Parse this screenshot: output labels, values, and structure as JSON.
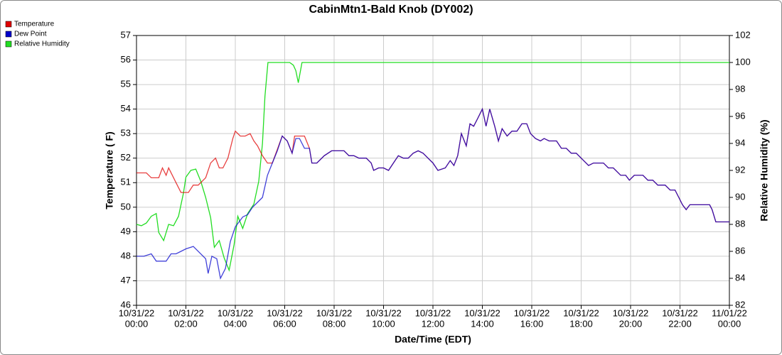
{
  "chart_data": {
    "type": "line",
    "title": "CabinMtn1-Bald Knob (DY002)",
    "xlabel": "Date/Time (EDT)",
    "ylabel": "Temperature ( F)",
    "y2label": "Relative Humidity (%)",
    "xlim": [
      0,
      24
    ],
    "xticks": [
      {
        "value": 0,
        "label": [
          "10/31/22",
          "00:00"
        ]
      },
      {
        "value": 2,
        "label": [
          "10/31/22",
          "02:00"
        ]
      },
      {
        "value": 4,
        "label": [
          "10/31/22",
          "04:00"
        ]
      },
      {
        "value": 6,
        "label": [
          "10/31/22",
          "06:00"
        ]
      },
      {
        "value": 8,
        "label": [
          "10/31/22",
          "08:00"
        ]
      },
      {
        "value": 10,
        "label": [
          "10/31/22",
          "10:00"
        ]
      },
      {
        "value": 12,
        "label": [
          "10/31/22",
          "12:00"
        ]
      },
      {
        "value": 14,
        "label": [
          "10/31/22",
          "14:00"
        ]
      },
      {
        "value": 16,
        "label": [
          "10/31/22",
          "16:00"
        ]
      },
      {
        "value": 18,
        "label": [
          "10/31/22",
          "18:00"
        ]
      },
      {
        "value": 20,
        "label": [
          "10/31/22",
          "20:00"
        ]
      },
      {
        "value": 22,
        "label": [
          "10/31/22",
          "22:00"
        ]
      },
      {
        "value": 24,
        "label": [
          "11/01/22",
          "00:00"
        ]
      }
    ],
    "ylim": [
      46,
      57
    ],
    "yticks": [
      46,
      47,
      48,
      49,
      50,
      51,
      52,
      53,
      54,
      55,
      56,
      57
    ],
    "y2lim": [
      82,
      102
    ],
    "y2ticks": [
      82,
      84,
      86,
      88,
      90,
      92,
      94,
      96,
      98,
      100,
      102
    ],
    "grid": true,
    "legend": "top-left",
    "series": [
      {
        "name": "Temperature",
        "color": "#e00000",
        "x": [
          0,
          0.4,
          0.6,
          0.9,
          1.05,
          1.2,
          1.3,
          1.6,
          1.8,
          2.1,
          2.3,
          2.5,
          2.8,
          3.0,
          3.2,
          3.35,
          3.5,
          3.7,
          3.9,
          4.0,
          4.2,
          4.4,
          4.6,
          4.75,
          4.9,
          5.1,
          5.3,
          5.5,
          5.9,
          6.1,
          6.3,
          6.4,
          6.8,
          7.0,
          7.1,
          7.3,
          7.6,
          7.9,
          8.4,
          8.6,
          8.8,
          9.0,
          9.3,
          9.5,
          9.6,
          9.8,
          10.0,
          10.2,
          10.4,
          10.6,
          10.8,
          11.0,
          11.2,
          11.4,
          11.6,
          11.8,
          12.0,
          12.2,
          12.5,
          12.7,
          12.85,
          13.0,
          13.15,
          13.35,
          13.5,
          13.65,
          13.8,
          14.0,
          14.15,
          14.3,
          14.5,
          14.65,
          14.8,
          15.0,
          15.2,
          15.4,
          15.6,
          15.8,
          15.95,
          16.15,
          16.35,
          16.5,
          16.7,
          17.0,
          17.2,
          17.4,
          17.6,
          17.8,
          18.1,
          18.3,
          18.5,
          18.9,
          19.1,
          19.3,
          19.6,
          19.8,
          19.95,
          20.15,
          20.5,
          20.7,
          20.9,
          21.1,
          21.4,
          21.6,
          21.8,
          21.95,
          22.1,
          22.25,
          22.4,
          23.2,
          23.3,
          23.45,
          24.0
        ],
        "values": [
          51.4,
          51.4,
          51.2,
          51.2,
          51.6,
          51.3,
          51.6,
          51.0,
          50.6,
          50.6,
          50.9,
          50.9,
          51.2,
          51.8,
          52.0,
          51.6,
          51.6,
          52.0,
          52.8,
          53.1,
          52.9,
          52.9,
          53.0,
          52.7,
          52.5,
          52.1,
          51.8,
          51.8,
          52.9,
          52.7,
          52.2,
          52.9,
          52.9,
          52.4,
          51.8,
          51.8,
          52.1,
          52.3,
          52.3,
          52.1,
          52.1,
          52.0,
          52.0,
          51.8,
          51.5,
          51.6,
          51.6,
          51.5,
          51.8,
          52.1,
          52.0,
          52.0,
          52.2,
          52.3,
          52.2,
          52.0,
          51.8,
          51.5,
          51.6,
          51.9,
          51.7,
          52.1,
          53.0,
          52.5,
          53.4,
          53.3,
          53.6,
          54.0,
          53.3,
          54.0,
          53.3,
          52.7,
          53.2,
          52.9,
          53.1,
          53.1,
          53.4,
          53.4,
          53.0,
          52.8,
          52.7,
          52.8,
          52.7,
          52.7,
          52.4,
          52.4,
          52.2,
          52.2,
          51.9,
          51.7,
          51.8,
          51.8,
          51.6,
          51.6,
          51.3,
          51.3,
          51.1,
          51.3,
          51.3,
          51.1,
          51.1,
          50.9,
          50.9,
          50.7,
          50.7,
          50.4,
          50.1,
          49.9,
          50.1,
          50.1,
          49.9,
          49.4,
          49.4
        ]
      },
      {
        "name": "Dew Point",
        "color": "#0000cc",
        "x": [
          0,
          0.3,
          0.6,
          0.8,
          1.2,
          1.4,
          1.6,
          1.8,
          2.0,
          2.3,
          2.8,
          2.9,
          3.05,
          3.25,
          3.4,
          3.6,
          3.8,
          4.0,
          4.3,
          4.5,
          4.7,
          4.9,
          5.1,
          5.3,
          5.5,
          5.7,
          5.9,
          6.1,
          6.3,
          6.45,
          6.6,
          6.8,
          7.0,
          7.1,
          7.3,
          7.6,
          7.9,
          8.4,
          8.6,
          8.8,
          9.0,
          9.3,
          9.5,
          9.6,
          9.8,
          10.0,
          10.2,
          10.4,
          10.6,
          10.8,
          11.0,
          11.2,
          11.4,
          11.6,
          11.8,
          12.0,
          12.2,
          12.5,
          12.7,
          12.85,
          13.0,
          13.15,
          13.35,
          13.5,
          13.65,
          13.8,
          14.0,
          14.15,
          14.3,
          14.5,
          14.65,
          14.8,
          15.0,
          15.2,
          15.4,
          15.6,
          15.8,
          15.95,
          16.15,
          16.35,
          16.5,
          16.7,
          17.0,
          17.2,
          17.4,
          17.6,
          17.8,
          18.1,
          18.3,
          18.5,
          18.9,
          19.1,
          19.3,
          19.6,
          19.8,
          19.95,
          20.15,
          20.5,
          20.7,
          20.9,
          21.1,
          21.4,
          21.6,
          21.8,
          21.95,
          22.1,
          22.25,
          22.4,
          23.2,
          23.3,
          23.45,
          24.0
        ],
        "values": [
          48.0,
          48.0,
          48.1,
          47.8,
          47.8,
          48.1,
          48.1,
          48.2,
          48.3,
          48.4,
          47.9,
          47.3,
          48.0,
          47.9,
          47.1,
          47.5,
          48.6,
          49.2,
          49.6,
          49.7,
          50.0,
          50.2,
          50.4,
          51.3,
          51.8,
          52.3,
          52.9,
          52.7,
          52.2,
          52.8,
          52.8,
          52.4,
          52.4,
          51.8,
          51.8,
          52.1,
          52.3,
          52.3,
          52.1,
          52.1,
          52.0,
          52.0,
          51.8,
          51.5,
          51.6,
          51.6,
          51.5,
          51.8,
          52.1,
          52.0,
          52.0,
          52.2,
          52.3,
          52.2,
          52.0,
          51.8,
          51.5,
          51.6,
          51.9,
          51.7,
          52.1,
          53.0,
          52.5,
          53.4,
          53.3,
          53.6,
          54.0,
          53.3,
          54.0,
          53.3,
          52.7,
          53.2,
          52.9,
          53.1,
          53.1,
          53.4,
          53.4,
          53.0,
          52.8,
          52.7,
          52.8,
          52.7,
          52.7,
          52.4,
          52.4,
          52.2,
          52.2,
          51.9,
          51.7,
          51.8,
          51.8,
          51.6,
          51.6,
          51.3,
          51.3,
          51.1,
          51.3,
          51.3,
          51.1,
          51.1,
          50.9,
          50.9,
          50.7,
          50.7,
          50.4,
          50.1,
          49.9,
          50.1,
          50.1,
          49.9,
          49.4,
          49.4
        ]
      },
      {
        "name": "Relative Humidity",
        "color": "#22dd22",
        "axis": "y2",
        "x": [
          0,
          0.2,
          0.4,
          0.6,
          0.8,
          0.9,
          1.1,
          1.3,
          1.5,
          1.7,
          1.9,
          2.0,
          2.2,
          2.4,
          2.6,
          2.8,
          3.0,
          3.15,
          3.35,
          3.55,
          3.75,
          3.95,
          4.1,
          4.3,
          4.5,
          4.75,
          4.95,
          5.1,
          5.2,
          5.32,
          6.2,
          6.35,
          6.45,
          6.55,
          6.7,
          24.0
        ],
        "values": [
          88.0,
          87.9,
          88.1,
          88.6,
          88.8,
          87.4,
          86.8,
          88.0,
          87.9,
          88.6,
          90.3,
          91.5,
          92.0,
          92.1,
          91.2,
          90.0,
          88.5,
          86.3,
          86.8,
          85.5,
          84.6,
          86.5,
          88.6,
          87.7,
          88.8,
          89.5,
          91.2,
          94.0,
          97.5,
          100.0,
          100.0,
          99.8,
          99.4,
          98.5,
          100.0,
          100.0
        ]
      }
    ]
  }
}
